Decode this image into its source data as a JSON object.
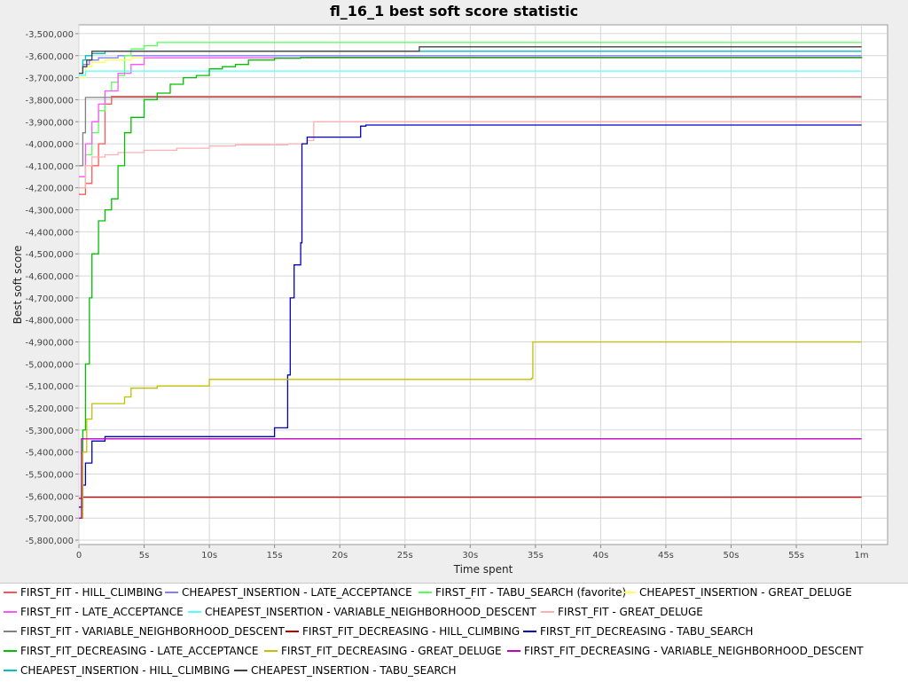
{
  "chart_data": {
    "type": "line",
    "title": "fl_16_1 best soft score statistic",
    "xlabel": "Time spent",
    "ylabel": "Best soft score",
    "xlim": [
      0,
      62
    ],
    "ylim": [
      -5820000,
      -3460000
    ],
    "x_ticks": [
      {
        "v": 0,
        "label": "0"
      },
      {
        "v": 5,
        "label": "5s"
      },
      {
        "v": 10,
        "label": "10s"
      },
      {
        "v": 15,
        "label": "15s"
      },
      {
        "v": 20,
        "label": "20s"
      },
      {
        "v": 25,
        "label": "25s"
      },
      {
        "v": 30,
        "label": "30s"
      },
      {
        "v": 35,
        "label": "35s"
      },
      {
        "v": 40,
        "label": "40s"
      },
      {
        "v": 45,
        "label": "45s"
      },
      {
        "v": 50,
        "label": "50s"
      },
      {
        "v": 55,
        "label": "55s"
      },
      {
        "v": 60,
        "label": "1m"
      }
    ],
    "y_ticks": [
      {
        "v": -3500000,
        "label": "-3,500,000"
      },
      {
        "v": -3600000,
        "label": "-3,600,000"
      },
      {
        "v": -3700000,
        "label": "-3,700,000"
      },
      {
        "v": -3800000,
        "label": "-3,800,000"
      },
      {
        "v": -3900000,
        "label": "-3,900,000"
      },
      {
        "v": -4000000,
        "label": "-4,000,000"
      },
      {
        "v": -4100000,
        "label": "-4,100,000"
      },
      {
        "v": -4200000,
        "label": "-4,200,000"
      },
      {
        "v": -4300000,
        "label": "-4,300,000"
      },
      {
        "v": -4400000,
        "label": "-4,400,000"
      },
      {
        "v": -4500000,
        "label": "-4,500,000"
      },
      {
        "v": -4600000,
        "label": "-4,600,000"
      },
      {
        "v": -4700000,
        "label": "-4,700,000"
      },
      {
        "v": -4800000,
        "label": "-4,800,000"
      },
      {
        "v": -4900000,
        "label": "-4,900,000"
      },
      {
        "v": -5000000,
        "label": "-5,000,000"
      },
      {
        "v": -5100000,
        "label": "-5,100,000"
      },
      {
        "v": -5200000,
        "label": "-5,200,000"
      },
      {
        "v": -5300000,
        "label": "-5,300,000"
      },
      {
        "v": -5400000,
        "label": "-5,400,000"
      },
      {
        "v": -5500000,
        "label": "-5,500,000"
      },
      {
        "v": -5600000,
        "label": "-5,600,000"
      },
      {
        "v": -5700000,
        "label": "-5,700,000"
      },
      {
        "v": -5800000,
        "label": "-5,800,000"
      }
    ],
    "grid": true,
    "legend_position": "bottom",
    "series": [
      {
        "name": "FIRST_FIT - HILL_CLIMBING",
        "color": "#ff5555",
        "points": [
          [
            0,
            -4230000
          ],
          [
            0.5,
            -4180000
          ],
          [
            1,
            -4100000
          ],
          [
            1.5,
            -4000000
          ],
          [
            2,
            -3820000
          ],
          [
            2.5,
            -3785000
          ],
          [
            60,
            -3785000
          ]
        ]
      },
      {
        "name": "CHEAPEST_INSERTION - LATE_ACCEPTANCE",
        "color": "#8080ff",
        "points": [
          [
            0,
            -3680000
          ],
          [
            0.3,
            -3640000
          ],
          [
            0.8,
            -3620000
          ],
          [
            1.5,
            -3610000
          ],
          [
            3,
            -3600000
          ],
          [
            60,
            -3600000
          ]
        ]
      },
      {
        "name": "FIRST_FIT - TABU_SEARCH (favorite)",
        "color": "#55ff55",
        "points": [
          [
            0,
            -4200000
          ],
          [
            0.5,
            -4050000
          ],
          [
            1,
            -3950000
          ],
          [
            1.5,
            -3850000
          ],
          [
            2,
            -3760000
          ],
          [
            2.5,
            -3720000
          ],
          [
            3,
            -3690000
          ],
          [
            3.5,
            -3600000
          ],
          [
            4,
            -3570000
          ],
          [
            5,
            -3555000
          ],
          [
            6,
            -3540000
          ],
          [
            60,
            -3540000
          ]
        ]
      },
      {
        "name": "CHEAPEST_INSERTION - GREAT_DELUGE",
        "color": "#ffff55",
        "points": [
          [
            0,
            -3700000
          ],
          [
            0.5,
            -3650000
          ],
          [
            1,
            -3630000
          ],
          [
            2,
            -3620000
          ],
          [
            4,
            -3610000
          ],
          [
            60,
            -3610000
          ]
        ]
      },
      {
        "name": "FIRST_FIT - LATE_ACCEPTANCE",
        "color": "#ff55ff",
        "points": [
          [
            0,
            -4150000
          ],
          [
            0.5,
            -4000000
          ],
          [
            1,
            -3900000
          ],
          [
            1.5,
            -3820000
          ],
          [
            2,
            -3760000
          ],
          [
            3,
            -3680000
          ],
          [
            4,
            -3640000
          ],
          [
            5,
            -3610000
          ],
          [
            60,
            -3605000
          ]
        ]
      },
      {
        "name": "CHEAPEST_INSERTION - VARIABLE_NEIGHBORHOOD_DESCENT",
        "color": "#55ffff",
        "points": [
          [
            0,
            -3690000
          ],
          [
            0.5,
            -3670000
          ],
          [
            60,
            -3670000
          ]
        ]
      },
      {
        "name": "FIRST_FIT - GREAT_DELUGE",
        "color": "#ffafaf",
        "points": [
          [
            0,
            -4200000
          ],
          [
            0.5,
            -4100000
          ],
          [
            1,
            -4060000
          ],
          [
            2,
            -4050000
          ],
          [
            3,
            -4040000
          ],
          [
            5,
            -4030000
          ],
          [
            7.5,
            -4020000
          ],
          [
            10,
            -4010000
          ],
          [
            12,
            -4005000
          ],
          [
            16,
            -4000000
          ],
          [
            17.5,
            -3985000
          ],
          [
            18,
            -3900000
          ],
          [
            60,
            -3900000
          ]
        ]
      },
      {
        "name": "FIRST_FIT - VARIABLE_NEIGHBORHOOD_DESCENT",
        "color": "#808080",
        "points": [
          [
            0,
            -4100000
          ],
          [
            0.3,
            -3950000
          ],
          [
            0.5,
            -3790000
          ],
          [
            60,
            -3790000
          ]
        ]
      },
      {
        "name": "FIRST_FIT_DECREASING - HILL_CLIMBING",
        "color": "#c00000",
        "points": [
          [
            0,
            -5610000
          ],
          [
            0.3,
            -5605000
          ],
          [
            60,
            -5605000
          ]
        ]
      },
      {
        "name": "FIRST_FIT_DECREASING - TABU_SEARCH",
        "color": "#0000c0",
        "points": [
          [
            0,
            -5650000
          ],
          [
            0.3,
            -5550000
          ],
          [
            0.5,
            -5450000
          ],
          [
            1,
            -5350000
          ],
          [
            2,
            -5330000
          ],
          [
            10,
            -5330000
          ],
          [
            14.8,
            -5330000
          ],
          [
            15,
            -5290000
          ],
          [
            15.9,
            -5290000
          ],
          [
            16,
            -5050000
          ],
          [
            16.2,
            -4700000
          ],
          [
            16.5,
            -4550000
          ],
          [
            17,
            -4450000
          ],
          [
            17.1,
            -4000000
          ],
          [
            17.5,
            -3970000
          ],
          [
            21.5,
            -3970000
          ],
          [
            21.6,
            -3920000
          ],
          [
            22,
            -3915000
          ],
          [
            60,
            -3915000
          ]
        ]
      },
      {
        "name": "FIRST_FIT_DECREASING - LATE_ACCEPTANCE",
        "color": "#00c000",
        "points": [
          [
            0,
            -5700000
          ],
          [
            0.3,
            -5300000
          ],
          [
            0.5,
            -5000000
          ],
          [
            0.8,
            -4700000
          ],
          [
            1,
            -4500000
          ],
          [
            1.5,
            -4350000
          ],
          [
            2,
            -4300000
          ],
          [
            2.5,
            -4250000
          ],
          [
            3,
            -4100000
          ],
          [
            3.5,
            -3950000
          ],
          [
            4,
            -3880000
          ],
          [
            5,
            -3800000
          ],
          [
            6,
            -3770000
          ],
          [
            7,
            -3730000
          ],
          [
            8,
            -3700000
          ],
          [
            9,
            -3690000
          ],
          [
            10,
            -3660000
          ],
          [
            11,
            -3650000
          ],
          [
            12,
            -3640000
          ],
          [
            13,
            -3620000
          ],
          [
            15,
            -3612000
          ],
          [
            17,
            -3608000
          ],
          [
            60,
            -3605000
          ]
        ]
      },
      {
        "name": "FIRST_FIT_DECREASING - GREAT_DELUGE",
        "color": "#c0c000",
        "points": [
          [
            0,
            -5700000
          ],
          [
            0.3,
            -5400000
          ],
          [
            0.6,
            -5250000
          ],
          [
            1,
            -5180000
          ],
          [
            3,
            -5180000
          ],
          [
            3.5,
            -5150000
          ],
          [
            4,
            -5110000
          ],
          [
            6,
            -5100000
          ],
          [
            10,
            -5070000
          ],
          [
            20,
            -5070000
          ],
          [
            34.7,
            -5065000
          ],
          [
            34.8,
            -4900000
          ],
          [
            60,
            -4900000
          ]
        ]
      },
      {
        "name": "FIRST_FIT_DECREASING - VARIABLE_NEIGHBORHOOD_DESCENT",
        "color": "#c000c0",
        "points": [
          [
            0,
            -5700000
          ],
          [
            0.2,
            -5340000
          ],
          [
            60,
            -5340000
          ]
        ]
      },
      {
        "name": "CHEAPEST_INSERTION - HILL_CLIMBING",
        "color": "#00c0c0",
        "points": [
          [
            0,
            -3680000
          ],
          [
            0.3,
            -3620000
          ],
          [
            0.5,
            -3600000
          ],
          [
            1,
            -3590000
          ],
          [
            2,
            -3580000
          ],
          [
            60,
            -3580000
          ]
        ]
      },
      {
        "name": "CHEAPEST_INSERTION - TABU_SEARCH",
        "color": "#404040",
        "points": [
          [
            0,
            -3680000
          ],
          [
            0.3,
            -3650000
          ],
          [
            0.6,
            -3620000
          ],
          [
            1,
            -3580000
          ],
          [
            26,
            -3580000
          ],
          [
            26.1,
            -3560000
          ],
          [
            60,
            -3560000
          ]
        ]
      }
    ]
  },
  "legend": {
    "items": [
      "FIRST_FIT - HILL_CLIMBING",
      "CHEAPEST_INSERTION - LATE_ACCEPTANCE",
      "FIRST_FIT - TABU_SEARCH (favorite)",
      "CHEAPEST_INSERTION - GREAT_DELUGE",
      "FIRST_FIT - LATE_ACCEPTANCE",
      "CHEAPEST_INSERTION - VARIABLE_NEIGHBORHOOD_DESCENT",
      "FIRST_FIT - GREAT_DELUGE",
      "FIRST_FIT - VARIABLE_NEIGHBORHOOD_DESCENT",
      "FIRST_FIT_DECREASING - HILL_CLIMBING",
      "FIRST_FIT_DECREASING - TABU_SEARCH",
      "FIRST_FIT_DECREASING - LATE_ACCEPTANCE",
      "FIRST_FIT_DECREASING - GREAT_DELUGE",
      "FIRST_FIT_DECREASING - VARIABLE_NEIGHBORHOOD_DESCENT",
      "CHEAPEST_INSERTION - HILL_CLIMBING",
      "CHEAPEST_INSERTION - TABU_SEARCH"
    ]
  }
}
